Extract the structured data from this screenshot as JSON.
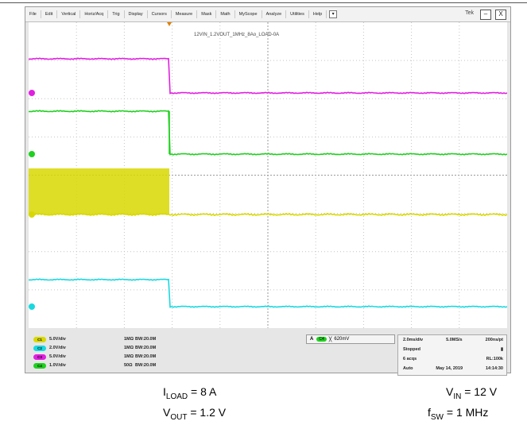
{
  "menu": {
    "items": [
      "File",
      "Edit",
      "Vertical",
      "Horiz/Acq",
      "Trig",
      "Display",
      "Cursors",
      "Measure",
      "Mask",
      "Math",
      "MyScope",
      "Analyze",
      "Utilities",
      "Help"
    ],
    "dropdown_icon": "▾",
    "brand": "Tek"
  },
  "window": {
    "minimize": "–",
    "close": "X"
  },
  "grid_title": "12VIN_1.2VOUT_1MHz_8Ao_LOAD-0A",
  "channels": [
    {
      "num": "C1",
      "scale": "5.0V/div",
      "impedance": "1MΩ",
      "bandwidth": "BW:20.0M",
      "color": "#d8d800"
    },
    {
      "num": "C2",
      "scale": "2.0V/div",
      "impedance": "1MΩ",
      "bandwidth": "BW:20.0M",
      "color": "#19d8e0"
    },
    {
      "num": "C3",
      "scale": "5.0V/div",
      "impedance": "1MΩ",
      "bandwidth": "BW:20.0M",
      "color": "#e020e0"
    },
    {
      "num": "C4",
      "scale": "1.0V/div",
      "impedance": "50Ω",
      "bandwidth": "BW:20.0M",
      "color": "#20d020"
    }
  ],
  "trigger": {
    "mode": "A",
    "source": "C4",
    "value": "620mV"
  },
  "acquisition": {
    "timebase": "2.0ms/div",
    "sample_rate": "5.0MS/s",
    "pts": "200ns/pt",
    "state": "Stopped",
    "acqs": "6 acqs",
    "record_length": "RL:100k",
    "auto": "Auto",
    "date": "May 14, 2019",
    "time": "14:14:30"
  },
  "captions": {
    "iload": {
      "label": "I",
      "sub": "LOAD",
      "rest": " = 8 A"
    },
    "vout": {
      "label": "V",
      "sub": "OUT",
      "rest": " = 1.2 V"
    },
    "vin": {
      "label": "V",
      "sub": "IN",
      "rest": " = 12 V"
    },
    "fsw": {
      "label": "f",
      "sub": "SW",
      "rest": " = 1 MHz"
    }
  },
  "colors": {
    "magenta": "#e020e0",
    "green": "#20d020",
    "yellow": "#d8d800",
    "cyan": "#19d8e0"
  }
}
